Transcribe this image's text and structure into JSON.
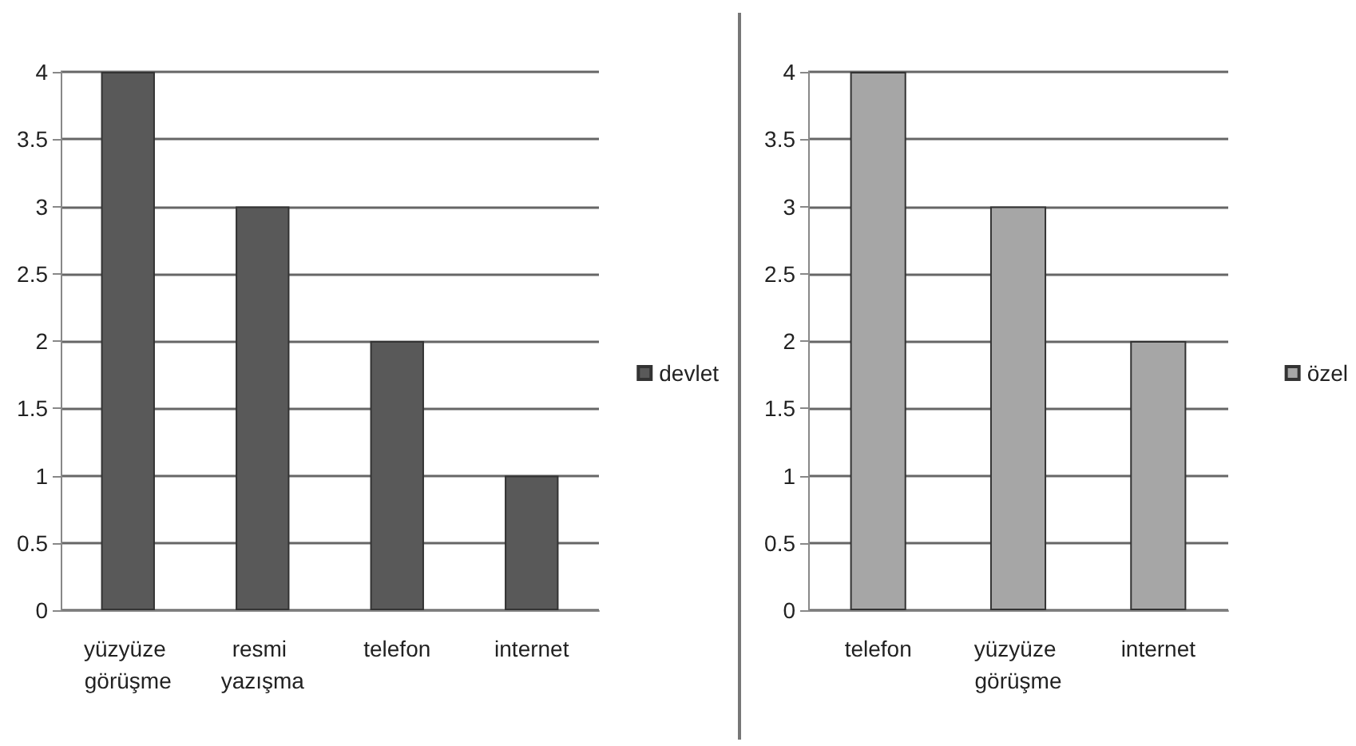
{
  "chart_data": [
    {
      "type": "bar",
      "categories": [
        "yüzyüze görüşme",
        "resmi yazışma",
        "telefon",
        "internet"
      ],
      "series": [
        {
          "name": "devlet",
          "color": "#595959",
          "values": [
            4,
            3,
            2,
            1
          ]
        }
      ],
      "ylim": [
        0,
        4
      ],
      "yticks": [
        0,
        0.5,
        1,
        1.5,
        2,
        2.5,
        3,
        3.5,
        4
      ],
      "grid": "y",
      "legend": "right"
    },
    {
      "type": "bar",
      "categories": [
        "telefon",
        "yüzyüze görüşme",
        "internet"
      ],
      "series": [
        {
          "name": "özel",
          "color": "#a6a6a6",
          "values": [
            4,
            3,
            2
          ]
        }
      ],
      "ylim": [
        0,
        4
      ],
      "yticks": [
        0,
        0.5,
        1,
        1.5,
        2,
        2.5,
        3,
        3.5,
        4
      ],
      "grid": "y",
      "legend": "right"
    }
  ]
}
